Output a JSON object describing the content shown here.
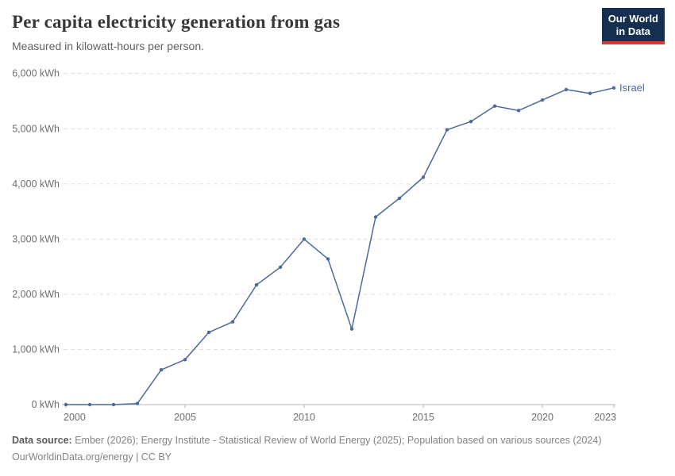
{
  "header": {
    "title": "Per capita electricity generation from gas",
    "subtitle": "Measured in kilowatt-hours per person.",
    "logo_line1": "Our World",
    "logo_line2": "in Data"
  },
  "colors": {
    "line": "#4c6a9c",
    "grid": "#e0e0e0",
    "axis": "#b5b5b5",
    "tick_text": "#6e6e6e",
    "logo_bg": "#15304e",
    "logo_bar": "#d93a2b"
  },
  "chart_data": {
    "type": "line",
    "title": "Per capita electricity generation from gas",
    "subtitle": "Measured in kilowatt-hours per person.",
    "xlabel": "",
    "ylabel": "kWh per person",
    "xlim": [
      2000,
      2023
    ],
    "ylim": [
      0,
      6000
    ],
    "grid": "horizontal dashed",
    "legend_position": "end-of-line label",
    "x": [
      2000,
      2001,
      2002,
      2003,
      2004,
      2005,
      2006,
      2007,
      2008,
      2009,
      2010,
      2011,
      2012,
      2013,
      2014,
      2015,
      2016,
      2017,
      2018,
      2019,
      2020,
      2021,
      2022,
      2023
    ],
    "series": [
      {
        "name": "Israel",
        "color": "#4c6a9c",
        "values": [
          0,
          0,
          0,
          20,
          630,
          815,
          1310,
          1500,
          2170,
          2490,
          3000,
          2640,
          1370,
          3400,
          3740,
          4120,
          4980,
          5130,
          5410,
          5330,
          5520,
          5710,
          5640,
          5740
        ]
      }
    ],
    "x_ticks": [
      {
        "value": 2000,
        "label": "2000"
      },
      {
        "value": 2005,
        "label": "2005"
      },
      {
        "value": 2010,
        "label": "2010"
      },
      {
        "value": 2015,
        "label": "2015"
      },
      {
        "value": 2020,
        "label": "2020"
      },
      {
        "value": 2023,
        "label": "2023"
      }
    ],
    "y_ticks": [
      {
        "value": 0,
        "label": "0 kWh"
      },
      {
        "value": 1000,
        "label": "1,000 kWh"
      },
      {
        "value": 2000,
        "label": "2,000 kWh"
      },
      {
        "value": 3000,
        "label": "3,000 kWh"
      },
      {
        "value": 4000,
        "label": "4,000 kWh"
      },
      {
        "value": 5000,
        "label": "5,000 kWh"
      },
      {
        "value": 6000,
        "label": "6,000 kWh"
      }
    ],
    "end_label": "Israel"
  },
  "footer": {
    "source_label": "Data source:",
    "source_text": " Ember (2026); Energy Institute - Statistical Review of World Energy (2025); Population based on various sources (2024)",
    "license_line": "OurWorldinData.org/energy | CC BY"
  }
}
